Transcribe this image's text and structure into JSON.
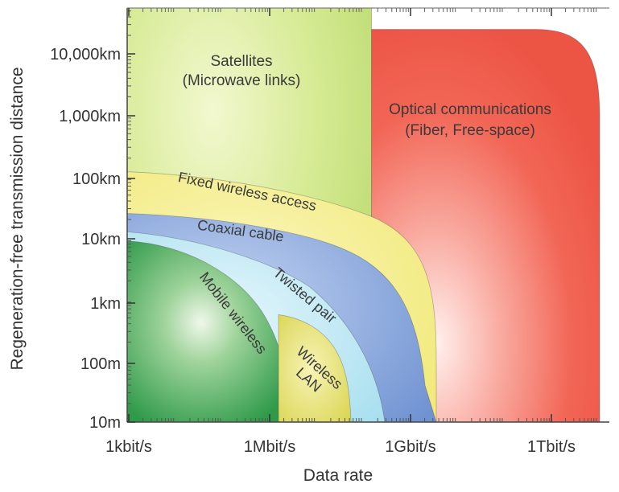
{
  "chart_data": {
    "type": "area",
    "title": "",
    "xlabel": "Data rate",
    "ylabel": "Regeneration-free transmission distance",
    "x_ticks": [
      "1kbit/s",
      "1Mbit/s",
      "1Gbit/s",
      "1Tbit/s"
    ],
    "y_ticks": [
      "10m",
      "100m",
      "1km",
      "10km",
      "100km",
      "1,000km",
      "10,000km"
    ],
    "x_scale": "log",
    "y_scale": "log",
    "xlim": [
      "1kbit/s",
      "10Tbit/s"
    ],
    "ylim": [
      "10m",
      "30,000km"
    ],
    "grid": false,
    "regions": [
      {
        "name": "Satellites (Microwave links)",
        "label_lines": [
          "Satellites",
          "(Microwave links)"
        ],
        "color": "#c8e27a",
        "x_range": [
          "1kbit/s",
          "~150Mbit/s"
        ],
        "y_range": [
          "10m",
          "~30,000km"
        ]
      },
      {
        "name": "Optical communications (Fiber, Free-space)",
        "label_lines": [
          "Optical communications",
          "(Fiber, Free-space)"
        ],
        "color": "#f26a5a",
        "x_range": [
          "~150Mbit/s",
          "~10Tbit/s"
        ],
        "y_range": [
          "10m",
          "~25,000km"
        ]
      },
      {
        "name": "Fixed wireless access",
        "label_lines": [
          "Fixed wireless access"
        ],
        "color": "#f4ec8c",
        "x_range": [
          "1kbit/s",
          "~2Gbit/s"
        ],
        "y_range": [
          "10m",
          "~120km"
        ]
      },
      {
        "name": "Coaxial cable",
        "label_lines": [
          "Coaxial cable"
        ],
        "color": "#7e9fd8",
        "x_range": [
          "1kbit/s",
          "~2Gbit/s"
        ],
        "y_range": [
          "10m",
          "~25km"
        ]
      },
      {
        "name": "Twisted pair",
        "label_lines": [
          "Twisted pair"
        ],
        "color": "#b7e6f2",
        "x_range": [
          "1kbit/s",
          "~500Mbit/s"
        ],
        "y_range": [
          "10m",
          "~12km"
        ]
      },
      {
        "name": "Mobile wireless",
        "label_lines": [
          "Mobile wireless"
        ],
        "color": "#3fae57",
        "x_range": [
          "1kbit/s",
          "~10Mbit/s"
        ],
        "y_range": [
          "10m",
          "~10km"
        ]
      },
      {
        "name": "Wireless LAN",
        "label_lines": [
          "Wireless",
          "LAN"
        ],
        "color": "#e1de5c",
        "x_range": [
          "~10Mbit/s",
          "~100Mbit/s"
        ],
        "y_range": [
          "10m",
          "~150m"
        ]
      }
    ]
  }
}
